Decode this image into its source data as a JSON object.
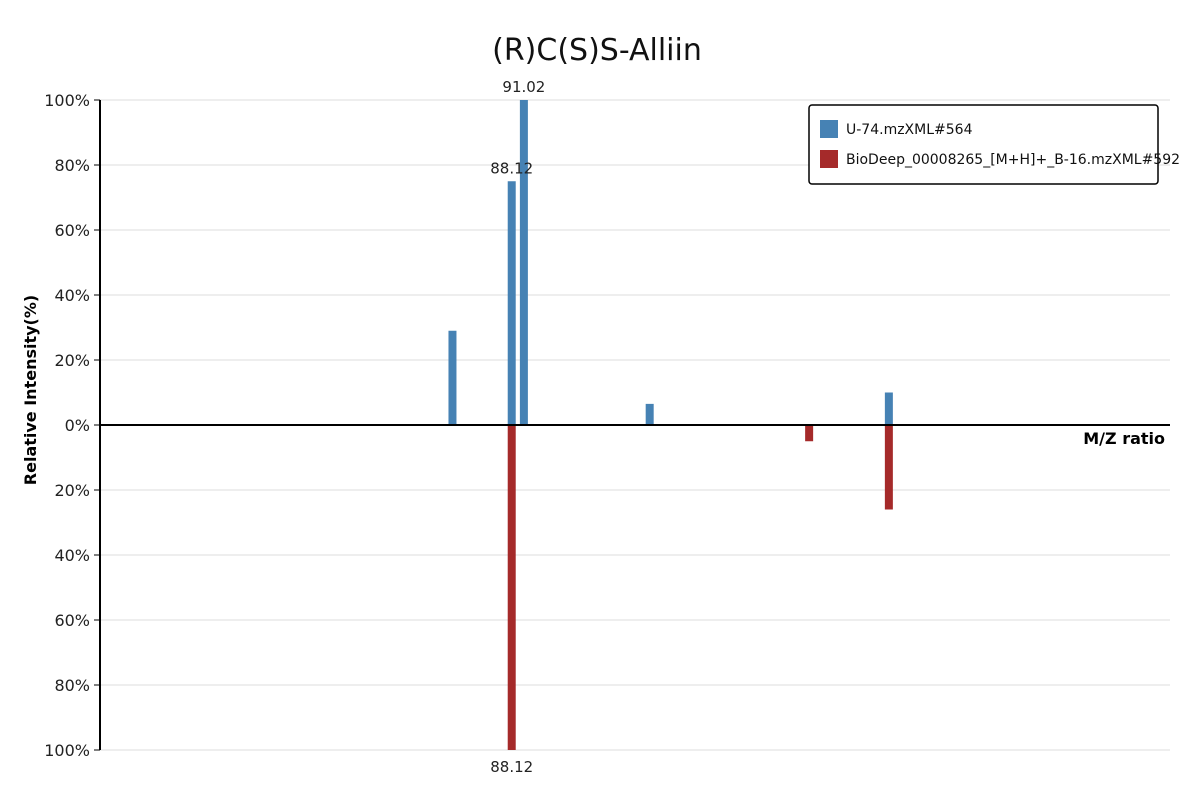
{
  "chart_data": {
    "type": "bar",
    "title": "(R)C(S)S-Alliin",
    "xlabel": "M/Z ratio",
    "ylabel": "Relative Intensity(%)",
    "ylim": [
      -100,
      100
    ],
    "y_tick_labels": [
      "100%",
      "80%",
      "60%",
      "40%",
      "20%",
      "0%",
      "20%",
      "40%",
      "60%",
      "80%",
      "100%"
    ],
    "grid": true,
    "legend_position": "top-right",
    "series": [
      {
        "name": "U-74.mzXML#564",
        "color": "#4682b4",
        "direction": "up",
        "peaks": [
          {
            "mz": 74.0,
            "intensity": 29,
            "label": ""
          },
          {
            "mz": 88.12,
            "intensity": 75,
            "label": "88.12"
          },
          {
            "mz": 91.02,
            "intensity": 100,
            "label": "91.02"
          },
          {
            "mz": 121.0,
            "intensity": 6.5,
            "label": ""
          },
          {
            "mz": 178.0,
            "intensity": 10,
            "label": ""
          }
        ]
      },
      {
        "name": "BioDeep_00008265_[M+H]+_B-16.mzXML#592",
        "color": "#a52a2a",
        "direction": "down",
        "peaks": [
          {
            "mz": 88.12,
            "intensity": 100,
            "label": "88.12"
          },
          {
            "mz": 159.0,
            "intensity": 5,
            "label": ""
          },
          {
            "mz": 178.0,
            "intensity": 26,
            "label": ""
          }
        ]
      }
    ]
  }
}
